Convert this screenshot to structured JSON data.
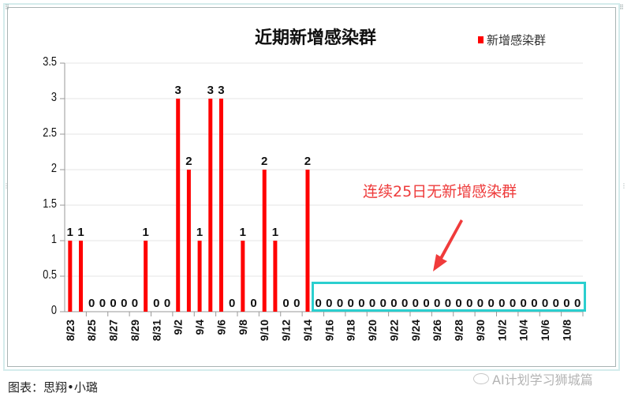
{
  "chart_data": {
    "type": "bar",
    "title": "近期新增感染群",
    "xlabel": "",
    "ylabel": "",
    "ylim": [
      0,
      3.5
    ],
    "yticks": [
      0,
      0.5,
      1,
      1.5,
      2,
      2.5,
      3,
      3.5
    ],
    "grid": true,
    "legend_position": "top-right",
    "legend": [
      "新增感染群"
    ],
    "series_color": "#ff0000",
    "categories": [
      "8/23",
      "8/24",
      "8/25",
      "8/26",
      "8/27",
      "8/28",
      "8/29",
      "8/30",
      "8/31",
      "9/1",
      "9/2",
      "9/3",
      "9/4",
      "9/5",
      "9/6",
      "9/7",
      "9/8",
      "9/9",
      "9/10",
      "9/11",
      "9/12",
      "9/13",
      "9/14",
      "9/15",
      "9/16",
      "9/17",
      "9/18",
      "9/19",
      "9/20",
      "9/21",
      "9/22",
      "9/23",
      "9/24",
      "9/25",
      "9/26",
      "9/27",
      "9/28",
      "9/29",
      "9/30",
      "10/1",
      "10/2",
      "10/3",
      "10/4",
      "10/5",
      "10/6",
      "10/7",
      "10/8",
      "10/9"
    ],
    "tick_labels": [
      "8/23",
      "8/25",
      "8/27",
      "8/29",
      "8/31",
      "9/2",
      "9/4",
      "9/6",
      "9/8",
      "9/10",
      "9/12",
      "9/14",
      "9/16",
      "9/18",
      "9/20",
      "9/22",
      "9/24",
      "9/26",
      "9/28",
      "9/30",
      "10/2",
      "10/4",
      "10/6",
      "10/8"
    ],
    "series": [
      {
        "name": "新增感染群",
        "values": [
          1,
          1,
          0,
          0,
          0,
          0,
          0,
          1,
          0,
          0,
          3,
          2,
          1,
          3,
          3,
          0,
          1,
          0,
          2,
          1,
          0,
          0,
          2,
          0,
          0,
          0,
          0,
          0,
          0,
          0,
          0,
          0,
          0,
          0,
          0,
          0,
          0,
          0,
          0,
          0,
          0,
          0,
          0,
          0,
          0,
          0,
          0,
          0
        ]
      }
    ],
    "annotations": [
      {
        "text": "连续25日无新增感染群",
        "color": "#ee3b3b",
        "target": "9/15-10/9",
        "arrow": true,
        "highlight_box_color": "#2bcfcf"
      }
    ]
  },
  "caption": "图表：思翔•小璐",
  "watermark": "AI计划学习狮城篇"
}
